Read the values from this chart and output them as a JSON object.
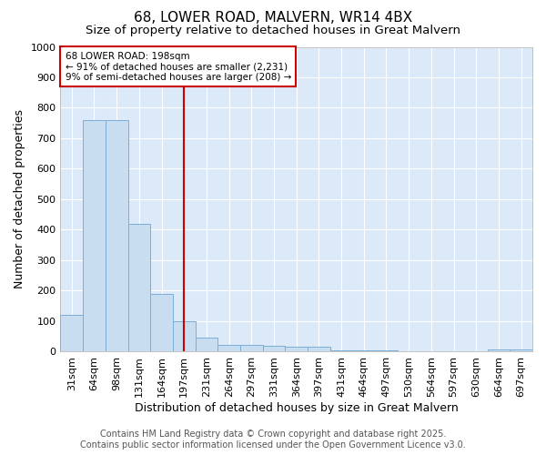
{
  "title": "68, LOWER ROAD, MALVERN, WR14 4BX",
  "subtitle": "Size of property relative to detached houses in Great Malvern",
  "xlabel": "Distribution of detached houses by size in Great Malvern",
  "ylabel": "Number of detached properties",
  "categories": [
    "31sqm",
    "64sqm",
    "98sqm",
    "131sqm",
    "164sqm",
    "197sqm",
    "231sqm",
    "264sqm",
    "297sqm",
    "331sqm",
    "364sqm",
    "397sqm",
    "431sqm",
    "464sqm",
    "497sqm",
    "530sqm",
    "564sqm",
    "597sqm",
    "630sqm",
    "664sqm",
    "697sqm"
  ],
  "values": [
    120,
    760,
    760,
    420,
    190,
    100,
    47,
    22,
    22,
    18,
    17,
    17,
    5,
    3,
    3,
    0,
    0,
    0,
    0,
    7,
    7
  ],
  "bar_color": "#c9ddf0",
  "bar_edge_color": "#7bafd4",
  "vline_x": 5,
  "vline_color": "#cc0000",
  "annotation_text": "68 LOWER ROAD: 198sqm\n← 91% of detached houses are smaller (2,231)\n9% of semi-detached houses are larger (208) →",
  "annotation_box_facecolor": "#ffffff",
  "annotation_box_edgecolor": "#cc0000",
  "ylim": [
    0,
    1000
  ],
  "yticks": [
    0,
    100,
    200,
    300,
    400,
    500,
    600,
    700,
    800,
    900,
    1000
  ],
  "figure_bg_color": "#ffffff",
  "plot_bg_color": "#dce9f8",
  "grid_color": "#ffffff",
  "footer_line1": "Contains HM Land Registry data © Crown copyright and database right 2025.",
  "footer_line2": "Contains public sector information licensed under the Open Government Licence v3.0.",
  "title_fontsize": 11,
  "subtitle_fontsize": 9.5,
  "label_fontsize": 9,
  "tick_fontsize": 8,
  "footer_fontsize": 7
}
